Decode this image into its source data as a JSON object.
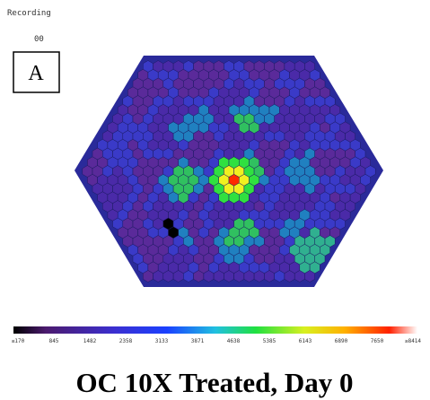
{
  "header": {
    "recording": "Recording",
    "frame": "00",
    "panel": "A"
  },
  "colorbar": {
    "labels": [
      "≤170",
      "845",
      "1482",
      "2358",
      "3133",
      "3871",
      "4638",
      "5385",
      "6143",
      "6890",
      "7650",
      "≥8414"
    ]
  },
  "title": "OC 10X Treated, Day 0"
}
